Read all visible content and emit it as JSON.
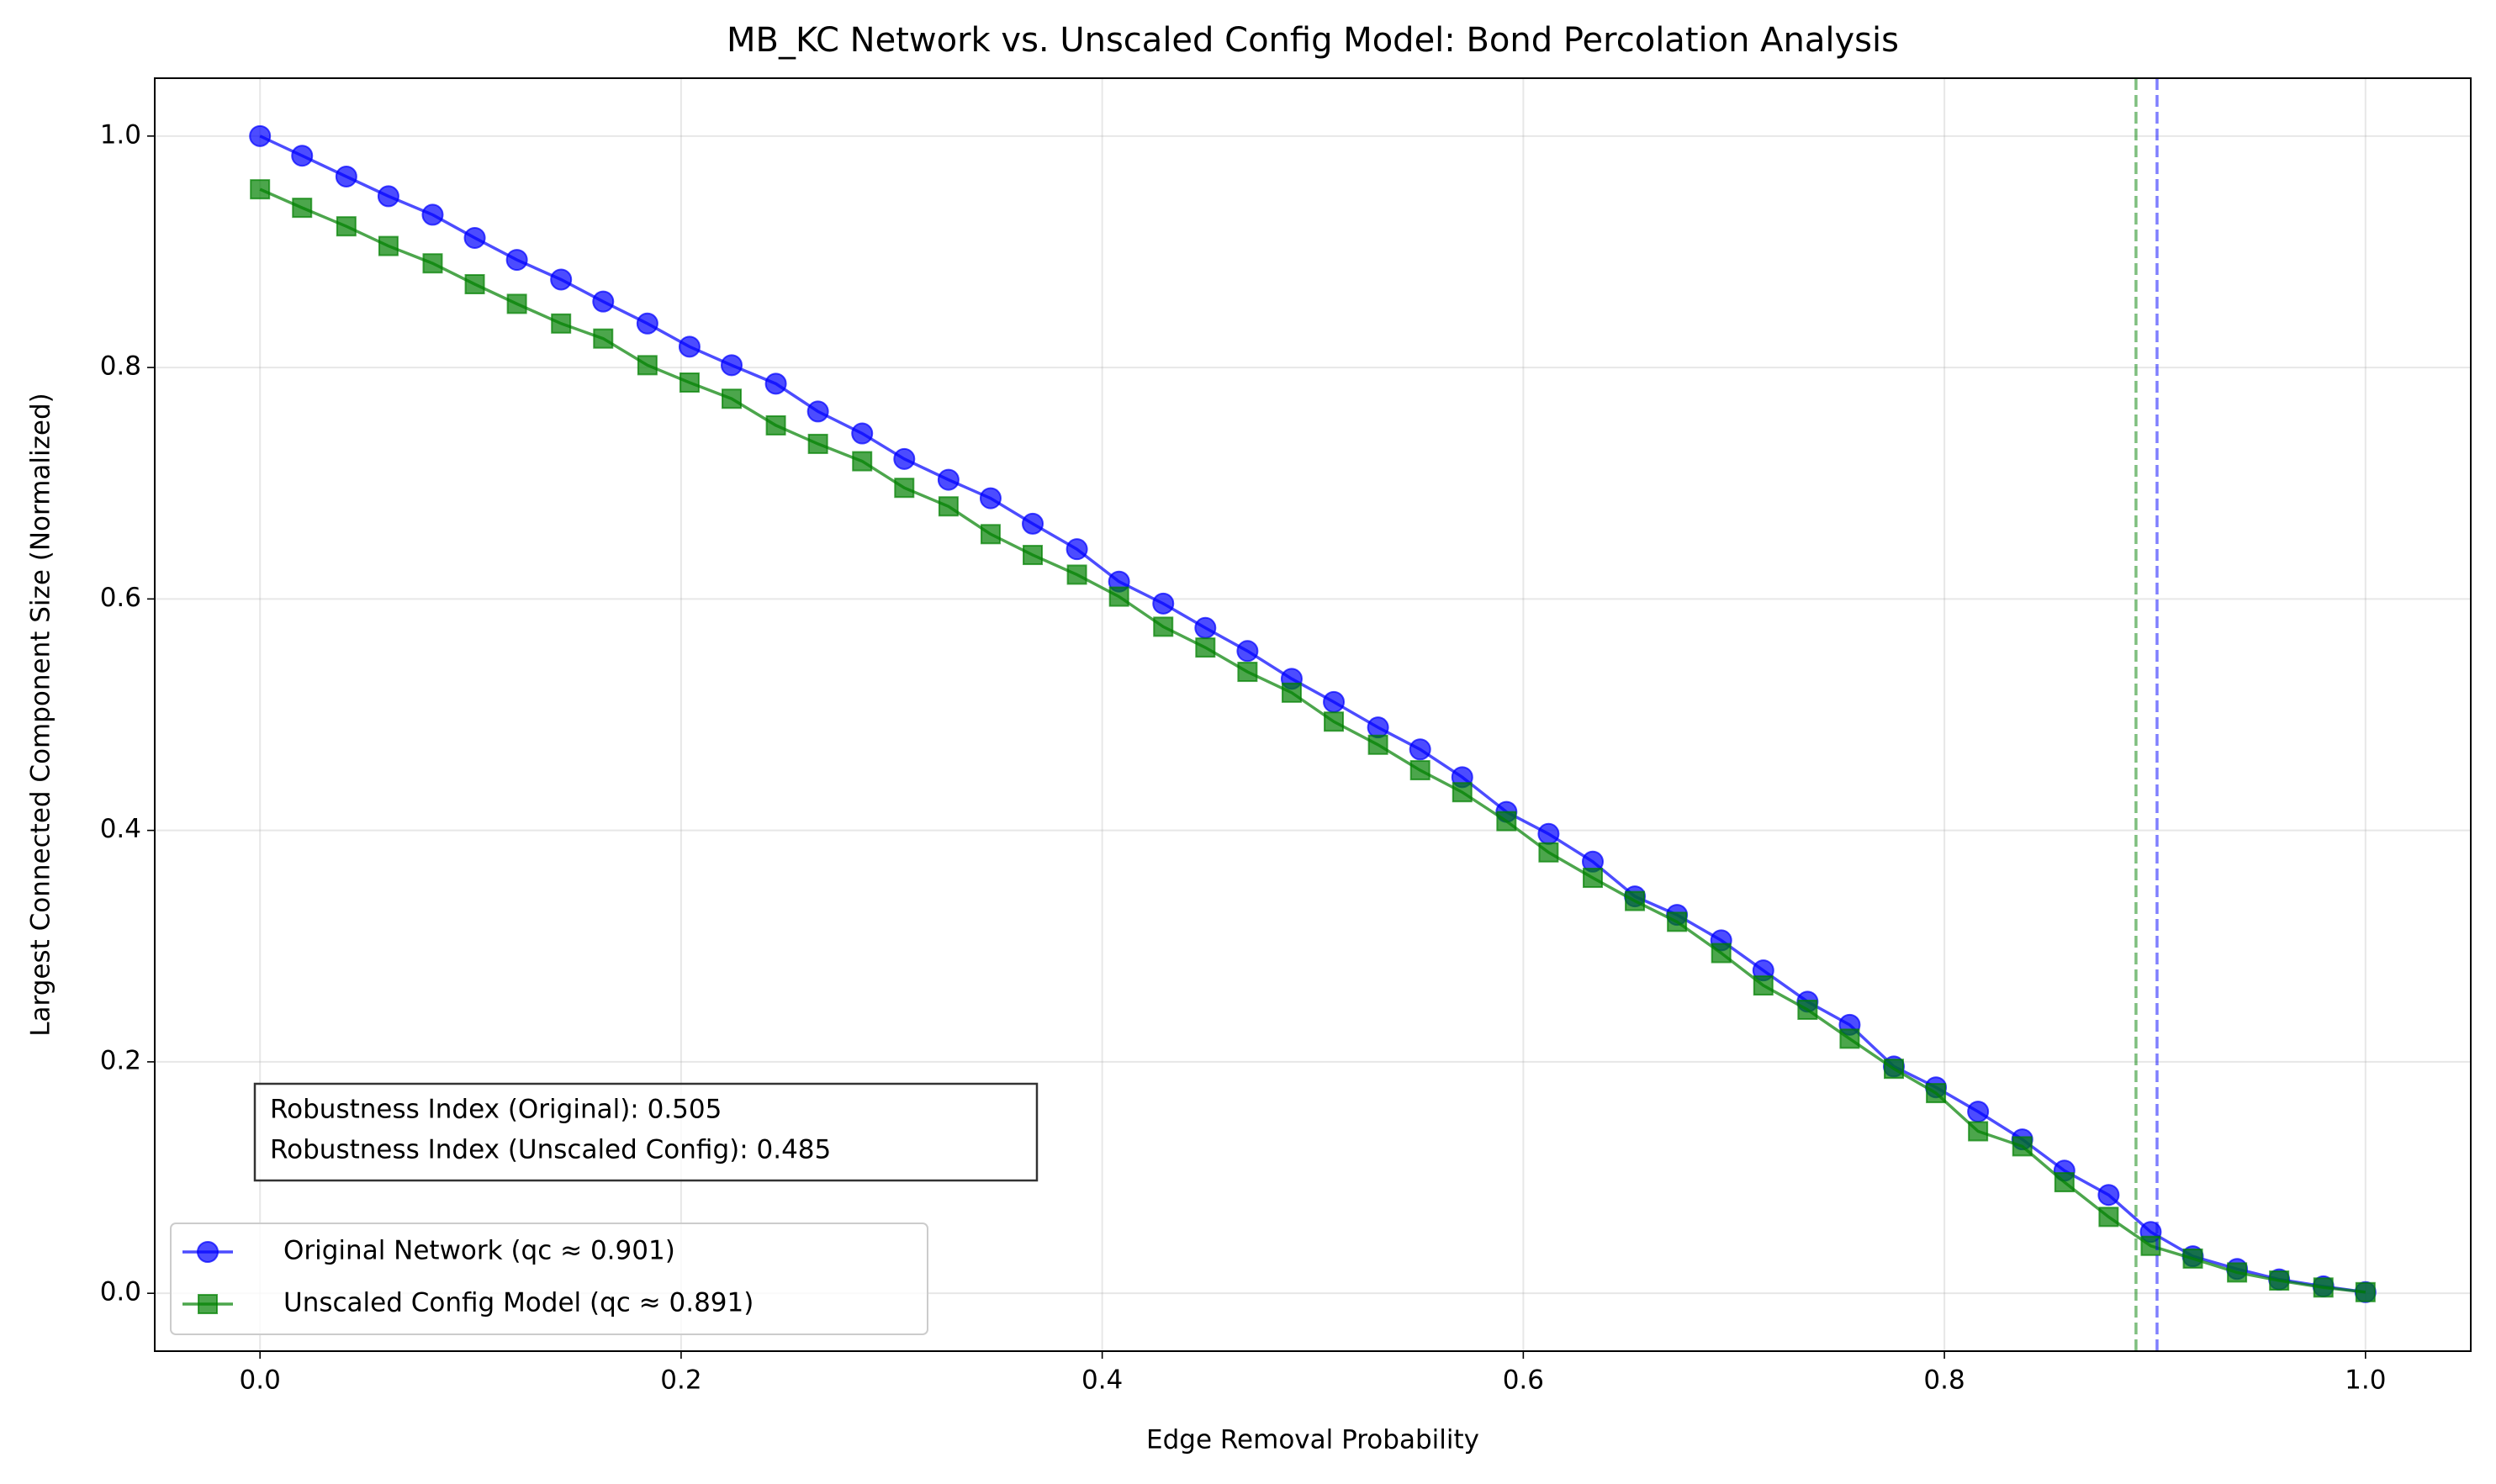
{
  "chart_data": {
    "type": "line",
    "title": "MB_KC Network vs. Unscaled Config Model: Bond Percolation Analysis",
    "xlabel": "Edge Removal Probability",
    "ylabel": "Largest Connected Component Size (Normalized)",
    "x": [
      0,
      0.02,
      0.041,
      0.061,
      0.082,
      0.102,
      0.122,
      0.143,
      0.163,
      0.184,
      0.204,
      0.224,
      0.245,
      0.265,
      0.286,
      0.306,
      0.327,
      0.347,
      0.367,
      0.388,
      0.408,
      0.429,
      0.449,
      0.469,
      0.49,
      0.51,
      0.531,
      0.551,
      0.571,
      0.592,
      0.612,
      0.633,
      0.653,
      0.673,
      0.694,
      0.714,
      0.735,
      0.755,
      0.776,
      0.796,
      0.816,
      0.837,
      0.857,
      0.878,
      0.898,
      0.918,
      0.939,
      0.959,
      0.98,
      1.0
    ],
    "series": [
      {
        "name": "Original Network (qc ≈ 0.901)",
        "color": "#0000ff",
        "marker": "circle",
        "values": [
          1.0,
          0.983,
          0.965,
          0.948,
          0.932,
          0.912,
          0.893,
          0.876,
          0.857,
          0.838,
          0.818,
          0.802,
          0.786,
          0.762,
          0.743,
          0.721,
          0.703,
          0.687,
          0.665,
          0.643,
          0.615,
          0.596,
          0.575,
          0.555,
          0.531,
          0.511,
          0.489,
          0.47,
          0.446,
          0.416,
          0.397,
          0.373,
          0.343,
          0.327,
          0.305,
          0.279,
          0.252,
          0.232,
          0.196,
          0.178,
          0.157,
          0.133,
          0.106,
          0.085,
          0.053,
          0.032,
          0.021,
          0.012,
          0.006,
          0.001
        ]
      },
      {
        "name": "Unscaled Config Model (qc ≈ 0.891)",
        "color": "#008000",
        "marker": "square",
        "values": [
          0.954,
          0.938,
          0.922,
          0.905,
          0.89,
          0.872,
          0.855,
          0.838,
          0.825,
          0.802,
          0.787,
          0.773,
          0.75,
          0.734,
          0.719,
          0.696,
          0.68,
          0.656,
          0.638,
          0.621,
          0.602,
          0.576,
          0.558,
          0.537,
          0.519,
          0.494,
          0.474,
          0.452,
          0.433,
          0.408,
          0.381,
          0.359,
          0.339,
          0.321,
          0.294,
          0.266,
          0.245,
          0.22,
          0.194,
          0.173,
          0.14,
          0.127,
          0.096,
          0.066,
          0.041,
          0.03,
          0.018,
          0.011,
          0.005,
          0.001
        ]
      }
    ],
    "vlines": [
      {
        "x": 0.891,
        "color": "#008000"
      },
      {
        "x": 0.901,
        "color": "#0000ff"
      }
    ],
    "annotation": [
      "Robustness Index (Original): 0.505",
      "Robustness Index (Unscaled Config): 0.485"
    ],
    "xlim": [
      -0.05,
      1.05
    ],
    "xticks": [
      {
        "value": 0,
        "label": "0.0"
      },
      {
        "value": 0.2,
        "label": "0.2"
      },
      {
        "value": 0.4,
        "label": "0.4"
      },
      {
        "value": 0.6,
        "label": "0.6"
      },
      {
        "value": 0.8,
        "label": "0.8"
      },
      {
        "value": 1,
        "label": "1.0"
      }
    ],
    "ylim": [
      -0.05,
      1.05
    ],
    "yticks": [
      {
        "value": 0,
        "label": "0.0"
      },
      {
        "value": 0.2,
        "label": "0.2"
      },
      {
        "value": 0.4,
        "label": "0.4"
      },
      {
        "value": 0.6,
        "label": "0.6"
      },
      {
        "value": 0.8,
        "label": "0.8"
      },
      {
        "value": 1,
        "label": "1.0"
      }
    ],
    "grid": true,
    "legend": "lower left"
  }
}
